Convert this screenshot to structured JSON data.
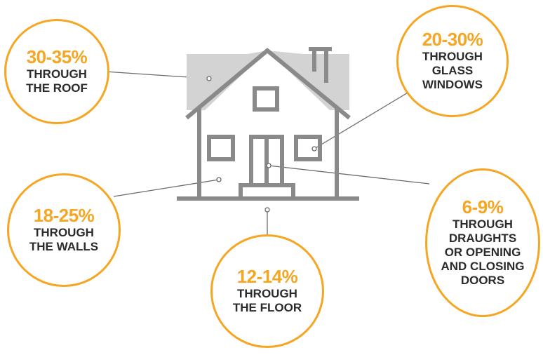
{
  "colors": {
    "accent": "#f5a623",
    "house_stroke": "#8a8a8a",
    "roof_fill": "#d3d3d3",
    "text": "#2b2b2b"
  },
  "callouts": [
    {
      "id": "roof",
      "percent": "30-35%",
      "label": "THROUGH\nTHE ROOF"
    },
    {
      "id": "windows",
      "percent": "20-30%",
      "label": "THROUGH\nGLASS\nWINDOWS"
    },
    {
      "id": "walls",
      "percent": "18-25%",
      "label": "THROUGH\nTHE WALLS"
    },
    {
      "id": "floor",
      "percent": "12-14%",
      "label": "THROUGH\nTHE FLOOR"
    },
    {
      "id": "doors",
      "percent": "6-9%",
      "label": "THROUGH\nDRAUGHTS\nOR OPENING\nAND CLOSING\nDOORS"
    }
  ]
}
